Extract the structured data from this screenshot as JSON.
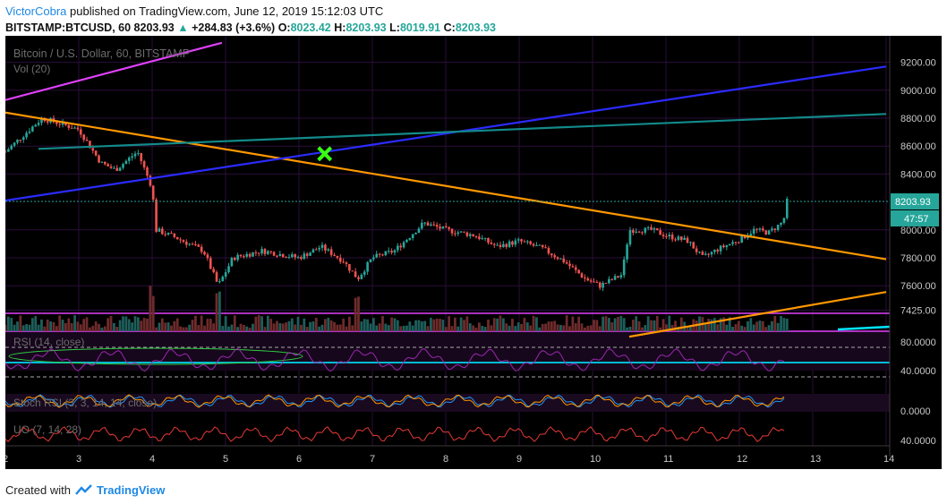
{
  "header": {
    "author": "VictorCobra",
    "published_text": " published on TradingView.com, June 12, 2019 15:12:03 UTC",
    "symbol": "BITSTAMP:BTCUSD, 60",
    "last": "8203.93",
    "arrow": "▲",
    "change": "+284.83 (+3.6%)",
    "o_label": "O:",
    "o_value": "8023.42",
    "h_label": "H:",
    "h_value": "8203.93",
    "l_label": "L:",
    "l_value": "8019.91",
    "c_label": "C:",
    "c_value": "8203.93"
  },
  "chart_data": {
    "type": "candlestick",
    "title": "Bitcoin / U.S. Dollar, 60, BITSTAMP",
    "volume_label": "Vol (20)",
    "x_ticks": [
      "2",
      "3",
      "4",
      "5",
      "6",
      "7",
      "8",
      "9",
      "10",
      "11",
      "12",
      "13",
      "14"
    ],
    "x_range": [
      2,
      14
    ],
    "price_ticks": [
      "9200.00",
      "9000.00",
      "8800.00",
      "8600.00",
      "8400.00",
      "8000.00",
      "7800.00",
      "7600.00",
      "7425.00"
    ],
    "price_range": [
      7300,
      9300
    ],
    "last_price_label": "8203.93",
    "countdown_label": "47:57",
    "key_points": [
      {
        "t": 2.0,
        "price": 8560
      },
      {
        "t": 2.5,
        "price": 8800
      },
      {
        "t": 3.0,
        "price": 8720
      },
      {
        "t": 3.3,
        "price": 8480
      },
      {
        "t": 3.5,
        "price": 8430
      },
      {
        "t": 3.8,
        "price": 8560
      },
      {
        "t": 4.0,
        "price": 8300
      },
      {
        "t": 4.05,
        "price": 8000
      },
      {
        "t": 4.3,
        "price": 7950
      },
      {
        "t": 4.7,
        "price": 7850
      },
      {
        "t": 4.9,
        "price": 7600
      },
      {
        "t": 5.1,
        "price": 7800
      },
      {
        "t": 5.5,
        "price": 7850
      },
      {
        "t": 6.0,
        "price": 7800
      },
      {
        "t": 6.3,
        "price": 7880
      },
      {
        "t": 6.6,
        "price": 7780
      },
      {
        "t": 6.8,
        "price": 7650
      },
      {
        "t": 7.0,
        "price": 7800
      },
      {
        "t": 7.3,
        "price": 7850
      },
      {
        "t": 7.7,
        "price": 8050
      },
      {
        "t": 8.0,
        "price": 8000
      },
      {
        "t": 8.4,
        "price": 7960
      },
      {
        "t": 8.7,
        "price": 7880
      },
      {
        "t": 9.0,
        "price": 7920
      },
      {
        "t": 9.3,
        "price": 7870
      },
      {
        "t": 9.6,
        "price": 7780
      },
      {
        "t": 9.9,
        "price": 7650
      },
      {
        "t": 10.1,
        "price": 7600
      },
      {
        "t": 10.4,
        "price": 7680
      },
      {
        "t": 10.5,
        "price": 8000
      },
      {
        "t": 10.8,
        "price": 8000
      },
      {
        "t": 11.0,
        "price": 7960
      },
      {
        "t": 11.3,
        "price": 7920
      },
      {
        "t": 11.5,
        "price": 7800
      },
      {
        "t": 11.7,
        "price": 7860
      },
      {
        "t": 12.0,
        "price": 7930
      },
      {
        "t": 12.2,
        "price": 8000
      },
      {
        "t": 12.4,
        "price": 7980
      },
      {
        "t": 12.6,
        "price": 8060
      },
      {
        "t": 12.65,
        "price": 8204
      }
    ],
    "trendlines": [
      {
        "name": "descending-orange",
        "color": "#ff9800",
        "t1": 2.0,
        "p1": 8840,
        "t2": 14.0,
        "p2": 7790
      },
      {
        "name": "rising-blue",
        "color": "#2b2bff",
        "t1": 2.0,
        "p1": 8210,
        "t2": 14.0,
        "p2": 9170
      },
      {
        "name": "teal-arc",
        "color": "#138a8a",
        "t1": 2.45,
        "p1": 8580,
        "t2": 14.0,
        "p2": 8830
      },
      {
        "name": "magenta-upper",
        "color": "#e040fb",
        "t1": 2.0,
        "p1": 8930,
        "t2": 4.95,
        "p2": 9340
      },
      {
        "name": "lower-orange",
        "color": "#ff9800",
        "t1": 10.5,
        "p1": 7235,
        "t2": 14.0,
        "p2": 7555
      }
    ],
    "indicators": [
      {
        "name": "RSI (14, close)",
        "ticks": [
          "80.0000",
          "40.0000"
        ]
      },
      {
        "name": "Stoch RSI (3, 3, 14, 14, close)",
        "ticks": [
          "0.0000"
        ]
      },
      {
        "name": "UO (7, 14, 28)",
        "ticks": [
          "40.0000"
        ]
      }
    ]
  },
  "footer": {
    "created_with": "Created with",
    "brand": "TradingView"
  },
  "colors": {
    "bg": "#000000",
    "up": "#26a69a",
    "down": "#ef5350",
    "axis_label": "#c8c8c8",
    "grid": "#2a0e3a"
  }
}
